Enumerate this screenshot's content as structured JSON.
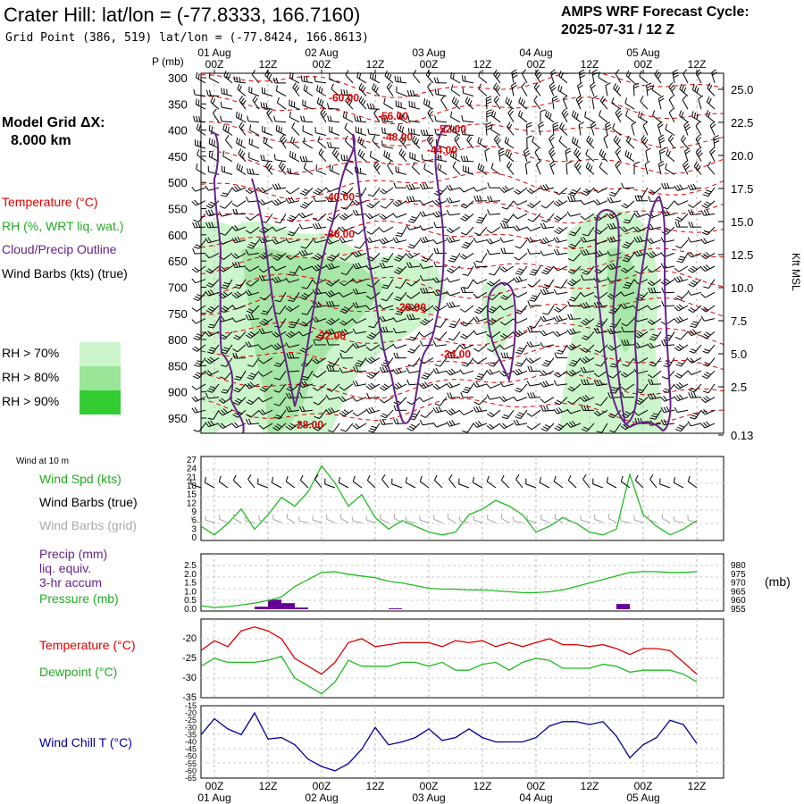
{
  "header": {
    "title": "Crater Hill:  lat/lon = (-77.8333, 166.7160)",
    "subtitle": "Grid Point (386, 519) lat/lon = (-77.8424, 166.8613)",
    "cycle_title": "AMPS WRF Forecast Cycle:",
    "cycle_value": "2025-07-31 / 12  Z"
  },
  "legend": {
    "grid_title": "Model Grid ΔX:",
    "grid_value": "8.000 km",
    "temperature": "Temperature (°C)",
    "rh": "RH (%, WRT liq. wat.)",
    "cloud": "Cloud/Precip Outline",
    "wind": "Wind Barbs (kts) (true)",
    "rh70": "RH > 70%",
    "rh80": "RH > 80%",
    "rh90": "RH > 90%",
    "rh_colors": [
      "#ccf5cc",
      "#99e699",
      "#33cc33"
    ]
  },
  "colors": {
    "temperature": "#dd0000",
    "cloud": "#662288",
    "rh_light": "#ccf5cc",
    "rh_mid": "#a6e6a6",
    "green_line": "#22bb22",
    "red_line": "#dd0000",
    "blue_line": "#000099",
    "purple_bar": "#660099",
    "grey_barb": "#aaaaaa"
  },
  "time_axis": {
    "hour_labels": [
      "00Z",
      "12Z",
      "00Z",
      "12Z",
      "00Z",
      "12Z",
      "00Z",
      "12Z",
      "00Z",
      "12Z"
    ],
    "date_labels": [
      "01 Aug",
      "02 Aug",
      "03 Aug",
      "04 Aug",
      "05 Aug"
    ],
    "hours": [
      0,
      12,
      24,
      36,
      48,
      60,
      72,
      84,
      96,
      108
    ],
    "date_hours": [
      0,
      24,
      48,
      72,
      96
    ],
    "start_hour": -3,
    "end_hour": 114
  },
  "cross_section": {
    "p_axis_title": "P (mb)",
    "kft_title": "Kft MSL",
    "pressure_ticks": [
      "300",
      "350",
      "400",
      "450",
      "500",
      "550",
      "600",
      "650",
      "700",
      "750",
      "800",
      "850",
      "900",
      "950"
    ],
    "pressure_values": [
      300,
      350,
      400,
      450,
      500,
      550,
      600,
      650,
      700,
      750,
      800,
      850,
      900,
      950
    ],
    "kft_ticks": [
      "25.0",
      "22.5",
      "20.0",
      "17.5",
      "15.0",
      "12.5",
      "10.0",
      "7.5",
      "5.0",
      "2.5",
      "0.13"
    ],
    "temp_labels": [
      {
        "text": "-60.00",
        "hour": 29,
        "p": 345
      },
      {
        "text": "-56.00",
        "hour": 40,
        "p": 380
      },
      {
        "text": "-52.00",
        "hour": 53,
        "p": 405
      },
      {
        "text": "-48.00",
        "hour": 41,
        "p": 420
      },
      {
        "text": "-44.00",
        "hour": 51,
        "p": 445
      },
      {
        "text": "-40.00",
        "hour": 28,
        "p": 535
      },
      {
        "text": "-36.00",
        "hour": 28,
        "p": 605
      },
      {
        "text": "-28.00",
        "hour": 44,
        "p": 745
      },
      {
        "text": "-32.00",
        "hour": 26,
        "p": 800
      },
      {
        "text": "-24.00",
        "hour": 54,
        "p": 835
      },
      {
        "text": "-28.00",
        "hour": 21,
        "p": 970
      }
    ]
  },
  "wind10m": {
    "heading": "Wind at 10 m",
    "spd_label": "Wind Spd (kts)",
    "barbs_true_label": "Wind Barbs (true)",
    "barbs_grid_label": "Wind Barbs (grid)",
    "yticks": [
      "27",
      "24",
      "21",
      "18",
      "15",
      "12",
      "9",
      "6",
      "3",
      "0"
    ],
    "yvalues": [
      27,
      24,
      21,
      18,
      15,
      12,
      9,
      6,
      3,
      0
    ]
  },
  "precip": {
    "label_line1": "Precip (mm)",
    "label_line2": "liq. equiv.",
    "label_line3": "3-hr accum",
    "pressure_label": "Pressure (mb)",
    "unit": "(mb)",
    "left_ticks": [
      "2.5",
      "2.0",
      "1.5",
      "1.0",
      "0.5",
      "0.0"
    ],
    "right_ticks": [
      "980",
      "975",
      "970",
      "965",
      "960",
      "955"
    ]
  },
  "temp_panel": {
    "temperature_label": "Temperature (°C)",
    "dewpoint_label": "Dewpoint (°C)",
    "yticks": [
      "-20",
      "-25",
      "-30",
      "-35"
    ]
  },
  "windchill_panel": {
    "label": "Wind Chill T (°C)",
    "yticks": [
      "-15",
      "-20",
      "-25",
      "-30",
      "-35",
      "-40",
      "-45",
      "-50",
      "-55",
      "-60",
      "-65"
    ]
  },
  "chart_data": [
    {
      "type": "line",
      "title": "Wind Spd (kts)",
      "x_hours": [
        -3,
        0,
        3,
        6,
        9,
        12,
        15,
        18,
        21,
        24,
        27,
        30,
        33,
        36,
        39,
        42,
        45,
        48,
        51,
        54,
        57,
        60,
        63,
        66,
        69,
        72,
        75,
        78,
        81,
        84,
        87,
        90,
        93,
        96,
        99,
        102,
        105,
        108
      ],
      "series": [
        {
          "name": "Wind Spd (kts)",
          "values": [
            4,
            1,
            5,
            10,
            3,
            8,
            14,
            11,
            16,
            25,
            19,
            11,
            15,
            7,
            3,
            6,
            4,
            2,
            1,
            2,
            8,
            10,
            13,
            11,
            8,
            2,
            4,
            7,
            5,
            2,
            1,
            3,
            22,
            8,
            4,
            1,
            3,
            6
          ]
        }
      ],
      "ylim": [
        0,
        27
      ]
    },
    {
      "type": "bar",
      "title": "Precip (mm)",
      "x_hours": [
        -3,
        0,
        3,
        6,
        9,
        12,
        15,
        18,
        21,
        24,
        27,
        30,
        33,
        36,
        39,
        42,
        45,
        48,
        51,
        54,
        57,
        60,
        63,
        66,
        69,
        72,
        75,
        78,
        81,
        84,
        87,
        90,
        93,
        96,
        99,
        102,
        105,
        108
      ],
      "values": [
        0,
        0,
        0,
        0,
        0.15,
        0.55,
        0.35,
        0.1,
        0,
        0,
        0,
        0,
        0,
        0,
        0.05,
        0,
        0,
        0,
        0,
        0,
        0,
        0,
        0,
        0,
        0,
        0,
        0,
        0,
        0,
        0,
        0,
        0.3,
        0,
        0,
        0,
        0,
        0,
        0
      ],
      "ylim": [
        0,
        2.5
      ]
    },
    {
      "type": "line",
      "title": "Pressure (mb)",
      "x_hours": [
        -3,
        0,
        3,
        6,
        9,
        12,
        15,
        18,
        21,
        24,
        27,
        30,
        33,
        36,
        39,
        42,
        45,
        48,
        51,
        54,
        57,
        60,
        63,
        66,
        69,
        72,
        75,
        78,
        81,
        84,
        87,
        90,
        93,
        96,
        99,
        102,
        105,
        108
      ],
      "series": [
        {
          "name": "Pressure (mb)",
          "values": [
            957,
            956,
            956.5,
            957.5,
            958.5,
            960,
            962,
            968,
            972,
            976,
            976.5,
            975,
            974,
            973,
            971,
            970,
            968.5,
            967,
            966.5,
            966.5,
            966,
            966,
            965.5,
            965,
            964.5,
            964.5,
            965,
            966,
            968,
            970,
            972,
            974,
            976,
            976.5,
            976.5,
            976,
            976,
            976.5
          ]
        }
      ],
      "ylim": [
        955,
        980
      ]
    },
    {
      "type": "line",
      "title": "Temperature (°C)",
      "x_hours": [
        -3,
        0,
        3,
        6,
        9,
        12,
        15,
        18,
        21,
        24,
        27,
        30,
        33,
        36,
        39,
        42,
        45,
        48,
        51,
        54,
        57,
        60,
        63,
        66,
        69,
        72,
        75,
        78,
        81,
        84,
        87,
        90,
        93,
        96,
        99,
        102,
        105,
        108
      ],
      "series": [
        {
          "name": "Temperature (°C)",
          "values": [
            -23,
            -20.5,
            -22,
            -18,
            -17,
            -18,
            -20,
            -25,
            -27,
            -29,
            -26,
            -21,
            -20,
            -22,
            -21.5,
            -21,
            -21,
            -21,
            -22,
            -20.5,
            -21,
            -20.5,
            -22,
            -21,
            -22,
            -21,
            -20,
            -21.5,
            -21.5,
            -22,
            -21.5,
            -22.5,
            -24,
            -22.5,
            -22.5,
            -23,
            -26,
            -29
          ]
        },
        {
          "name": "Dewpoint (°C)",
          "values": [
            -27,
            -25,
            -26,
            -26,
            -26,
            -25.5,
            -24.5,
            -30,
            -32,
            -34,
            -31,
            -25.5,
            -27,
            -27,
            -27,
            -26,
            -26,
            -27,
            -26,
            -28,
            -28,
            -26.5,
            -26,
            -28,
            -26,
            -25,
            -25.5,
            -27.5,
            -27.5,
            -27.5,
            -26.5,
            -27,
            -28.5,
            -28,
            -28,
            -28,
            -29,
            -31
          ]
        }
      ],
      "ylim": [
        -35,
        -15
      ]
    },
    {
      "type": "line",
      "title": "Wind Chill T (°C)",
      "x_hours": [
        -3,
        0,
        3,
        6,
        9,
        12,
        15,
        18,
        21,
        24,
        27,
        30,
        33,
        36,
        39,
        42,
        45,
        48,
        51,
        54,
        57,
        60,
        63,
        66,
        69,
        72,
        75,
        78,
        81,
        84,
        87,
        90,
        93,
        96,
        99,
        102,
        105,
        108
      ],
      "series": [
        {
          "name": "Wind Chill T (°C)",
          "values": [
            -35,
            -24,
            -31,
            -35,
            -20,
            -38,
            -37,
            -42,
            -52,
            -57,
            -60,
            -55,
            -45,
            -30,
            -42,
            -40,
            -37,
            -31,
            -39,
            -37,
            -31,
            -37,
            -40,
            -40,
            -40,
            -37,
            -29,
            -26,
            -26,
            -28,
            -26,
            -36,
            -51,
            -42,
            -37,
            -25,
            -28,
            -41
          ]
        }
      ],
      "ylim": [
        -65,
        -15
      ]
    }
  ]
}
